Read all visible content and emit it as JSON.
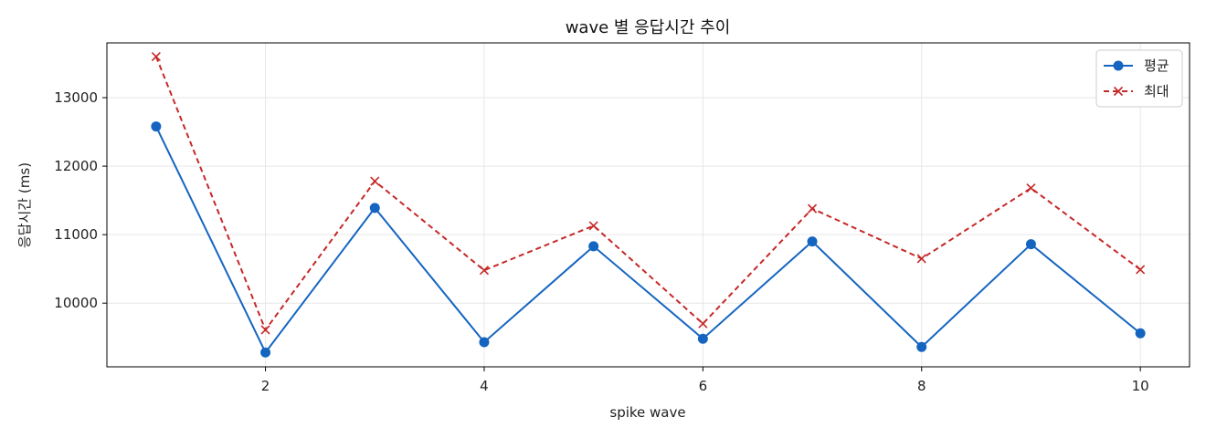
{
  "chart_data": {
    "type": "line",
    "title": "wave 별 응답시간 추이",
    "xlabel": "spike wave",
    "ylabel": "응답시간 (ms)",
    "x": [
      1,
      2,
      3,
      4,
      5,
      6,
      7,
      8,
      9,
      10
    ],
    "xlim": [
      0.55,
      10.45
    ],
    "ylim": [
      9070,
      13800
    ],
    "xticks": [
      2,
      4,
      6,
      8,
      10
    ],
    "yticks": [
      10000,
      11000,
      12000,
      13000
    ],
    "grid": true,
    "legend_position": "top-right",
    "series": [
      {
        "name": "평균",
        "color": "#1565c0",
        "style": "solid",
        "marker": "circle",
        "values": [
          12580,
          9280,
          11390,
          9430,
          10830,
          9480,
          10900,
          9360,
          10860,
          9560
        ]
      },
      {
        "name": "최대",
        "color": "#c62828",
        "style": "dashed",
        "marker": "x",
        "values": [
          13600,
          9610,
          11780,
          10480,
          11130,
          9700,
          11380,
          10650,
          11680,
          10490
        ]
      }
    ]
  }
}
